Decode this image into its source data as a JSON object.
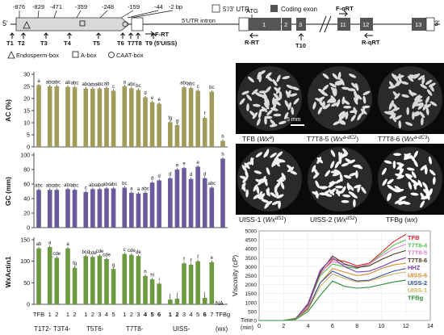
{
  "gene_diagram": {
    "five_prime": "5'",
    "three_prime": "3'",
    "positions": [
      "-876",
      "-829",
      "-471",
      "-359",
      "-248",
      "-159",
      "-44",
      "-2 bp"
    ],
    "targets_left": [
      "T1",
      "T2",
      "T3",
      "T4",
      "T5",
      "T6",
      "T7",
      "T8",
      "T9 (5'UISS)"
    ],
    "primer_f_rt_left": "F-RT",
    "legend_utr": "5'/3' UTR",
    "legend_coding": "Coding exon",
    "intron_label": "5'UTR  intron",
    "atg": "ATG",
    "exons": [
      "1",
      "2",
      "3",
      "11",
      "12",
      "13"
    ],
    "r_rt": "R-RT",
    "t10": "T10",
    "f_qrt": "F-qRT",
    "r_qrt": "R-qRT",
    "legend_boxes": [
      "Endosperm-box",
      "A-box",
      "CAAT-box"
    ]
  },
  "photos": {
    "scale_bar": "5 mm",
    "row1": [
      {
        "name": "TFB",
        "allele": "Wx",
        "sup": "a"
      },
      {
        "name": "T7T8-5",
        "allele": "Wx",
        "sup": "a-dC2"
      },
      {
        "name": "T7T8-6",
        "allele": "Wx",
        "sup": "a-dC3"
      }
    ],
    "row2": [
      {
        "name": "UISS-1",
        "allele": "Wx",
        "sup": "dS1"
      },
      {
        "name": "UISS-2",
        "allele": "Wx",
        "sup": "dS2"
      },
      {
        "name": "TFBg",
        "allele": "wx",
        "sup": ""
      }
    ]
  },
  "x_axis": {
    "tick_labels": [
      "TFB",
      "1",
      "2",
      "1",
      "2",
      "1",
      "2",
      "3",
      "4",
      "5",
      "1",
      "2",
      "3",
      "4",
      "5",
      "6",
      "1",
      "2",
      "3",
      "4",
      "5",
      "6",
      "7",
      "TFBg"
    ],
    "group_labels": [
      "T1T2-",
      "T3T4-",
      "T5T6-",
      "T7T8-",
      "UISS-"
    ],
    "tfbg_sub": "(wx)",
    "na_label": "NA"
  },
  "chart_data": [
    {
      "type": "bar",
      "title": "",
      "ylabel": "AC (%)",
      "ylim": [
        0,
        30
      ],
      "yticks": [
        0,
        5,
        10,
        15,
        20,
        25,
        30
      ],
      "color": "#a19b5c",
      "values": [
        25.5,
        25.0,
        25.0,
        24.8,
        24.6,
        24.1,
        24.0,
        24.1,
        24.4,
        23.2,
        25.0,
        24.2,
        23.5,
        20.5,
        18.5,
        17.8,
        10.2,
        9.0,
        24.6,
        24.3,
        23.2,
        12.0,
        22.8,
        2.5
      ],
      "letters": [
        "a",
        "abc",
        "abc",
        "ab",
        "abc",
        "abc",
        "abc",
        "abc",
        "ab",
        "c",
        "a",
        "abc",
        "bc",
        "d",
        "e",
        "e",
        "fg",
        "g",
        "abc",
        "abc",
        "c",
        "f",
        "bc",
        "h"
      ]
    },
    {
      "type": "bar",
      "title": "",
      "ylabel": "GC (mm)",
      "ylim": [
        0,
        100
      ],
      "yticks": [
        0,
        20,
        40,
        60,
        80,
        100
      ],
      "color": "#6a5a9c",
      "values": [
        52,
        52,
        52,
        53,
        52,
        49,
        53,
        53,
        54,
        54,
        55,
        48,
        47,
        48,
        62,
        65,
        68,
        80,
        82,
        67,
        84,
        68,
        55,
        95
      ],
      "letters": [
        "abc",
        "abc",
        "abc",
        "abc",
        "abc",
        "c",
        "abc",
        "abc",
        "abc",
        "abc",
        "bc",
        "a",
        "a",
        "abc",
        "d",
        "d",
        "d",
        "e",
        "e",
        "d",
        "e",
        "d",
        "abc",
        "h"
      ]
    },
    {
      "type": "bar",
      "title": "",
      "ylabel": "WxActin1",
      "ylim": [
        0,
        150
      ],
      "yticks": [
        0,
        50,
        100,
        150
      ],
      "color": "#6b9a3f",
      "values": [
        130,
        133,
        108,
        130,
        85,
        112,
        110,
        113,
        105,
        82,
        117,
        115,
        112,
        66,
        58,
        48,
        11,
        13,
        95,
        92,
        100,
        15,
        98,
        0
      ],
      "letters": [
        "ab",
        "a",
        "cde",
        "a",
        "fg",
        "bcd",
        "cde",
        "cde",
        "cde",
        "g",
        "c",
        "cde",
        "de",
        "h",
        "hi",
        "i",
        "j",
        "j",
        "f",
        "f",
        "f",
        "j",
        "e",
        ""
      ]
    },
    {
      "type": "line",
      "title": "",
      "xlabel": "Time (min)",
      "ylabel": "Viscosity (cP)",
      "xlim": [
        0,
        14
      ],
      "ylim": [
        0,
        5000
      ],
      "xticks": [
        0,
        2,
        4,
        6,
        8,
        10,
        12,
        14
      ],
      "yticks": [
        0,
        500,
        1000,
        1500,
        2000,
        2500,
        3000,
        3500,
        4000,
        4500,
        5000
      ],
      "x": [
        0,
        1,
        2,
        3,
        4,
        5,
        6,
        7,
        8,
        9,
        10,
        11,
        12
      ],
      "series": [
        {
          "name": "TFB",
          "color": "#d9262f",
          "values": [
            0,
            0,
            0,
            100,
            800,
            2600,
            3400,
            3300,
            3050,
            3200,
            3800,
            4400,
            4800
          ]
        },
        {
          "name": "T7T8-4",
          "color": "#4fc04a",
          "values": [
            0,
            0,
            0,
            110,
            850,
            2500,
            3150,
            3000,
            2900,
            3150,
            3700,
            4200,
            4500
          ]
        },
        {
          "name": "T7T8-5",
          "color": "#e07fd0",
          "values": [
            0,
            0,
            0,
            100,
            820,
            2650,
            3300,
            3100,
            3000,
            3150,
            3600,
            4000,
            4250
          ]
        },
        {
          "name": "T7T8-6",
          "color": "#4a3a1f",
          "values": [
            0,
            0,
            0,
            120,
            900,
            2700,
            3600,
            3150,
            2950,
            3050,
            3400,
            3700,
            3900
          ]
        },
        {
          "name": "HHZ",
          "color": "#7a3fb5",
          "values": [
            0,
            0,
            0,
            90,
            950,
            2800,
            3500,
            3000,
            2700,
            2750,
            3000,
            3300,
            3500
          ]
        },
        {
          "name": "UISS-6",
          "color": "#d8892b",
          "values": [
            0,
            0,
            0,
            100,
            700,
            2100,
            2900,
            2700,
            2500,
            2600,
            2900,
            3100,
            3200
          ]
        },
        {
          "name": "UISS-2",
          "color": "#2f4ea8",
          "values": [
            0,
            0,
            0,
            90,
            650,
            2100,
            2750,
            2450,
            2200,
            2250,
            2500,
            2750,
            2900
          ]
        },
        {
          "name": "UISS-1",
          "color": "#c9b45c",
          "values": [
            0,
            0,
            0,
            80,
            600,
            1900,
            2600,
            2350,
            2150,
            2200,
            2400,
            2600,
            2700
          ]
        },
        {
          "name": "TFBg",
          "color": "#2e8b3a",
          "values": [
            0,
            0,
            0,
            60,
            500,
            1400,
            2200,
            1900,
            1800,
            1850,
            2000,
            2150,
            2250
          ]
        }
      ]
    }
  ]
}
